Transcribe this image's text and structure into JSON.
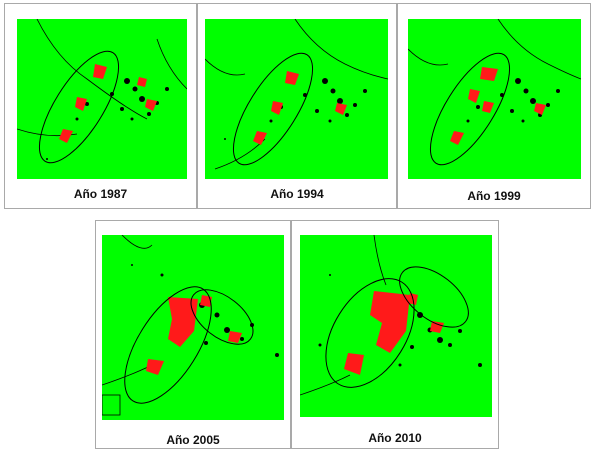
{
  "colors": {
    "vegetation": "#00ff00",
    "urban": "#ff1a1a",
    "dark_features": "#000000",
    "frame": "#a9a9a9"
  },
  "panels": [
    {
      "caption": "Año 1987",
      "year": 1987
    },
    {
      "caption": "Año 1994",
      "year": 1994
    },
    {
      "caption": "Año 1999",
      "year": 1999
    },
    {
      "caption": "Año 2005",
      "year": 2005
    },
    {
      "caption": "Año 2010",
      "year": 2010
    }
  ]
}
